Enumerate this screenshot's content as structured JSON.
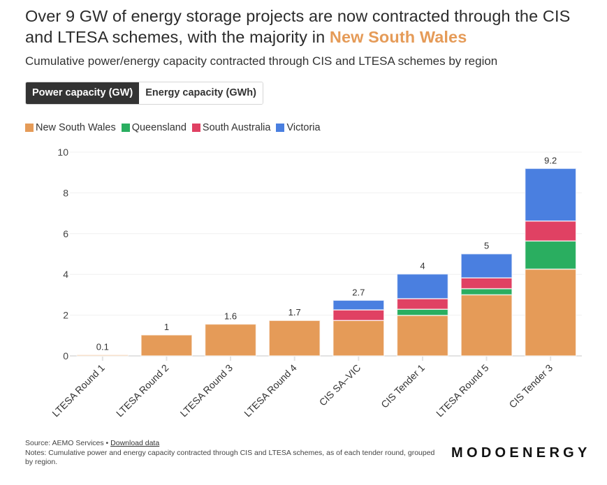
{
  "header": {
    "title_main": "Over 9 GW of energy storage projects are now contracted through the CIS and LTESA schemes, with the majority in ",
    "title_highlight": "New South Wales",
    "subtitle": "Cumulative power/energy capacity contracted through CIS and LTESA schemes by region"
  },
  "toggle": {
    "options": [
      {
        "label": "Power capacity (GW)",
        "active": true
      },
      {
        "label": "Energy capacity (GWh)",
        "active": false
      }
    ]
  },
  "colors": {
    "New South Wales": "#e59b58",
    "Queensland": "#2aae60",
    "South Australia": "#e04163",
    "Victoria": "#4a7fe0"
  },
  "chart_data": {
    "type": "bar",
    "stacked": true,
    "title": "Cumulative power/energy capacity contracted through CIS and LTESA schemes by region",
    "xlabel": "",
    "ylabel": "",
    "ylim": [
      0,
      10
    ],
    "yticks": [
      0,
      2,
      4,
      6,
      8,
      10
    ],
    "grid": true,
    "legend_position": "top-left",
    "categories": [
      "LTESA Round 1",
      "LTESA Round 2",
      "LTESA Round 3",
      "LTESA Round 4",
      "CIS SA–VIC",
      "CIS Tender 1",
      "LTESA Round 5",
      "CIS Tender 3"
    ],
    "series": [
      {
        "name": "New South Wales",
        "values": [
          0.05,
          1.03,
          1.56,
          1.74,
          1.74,
          1.99,
          3.0,
          4.26
        ]
      },
      {
        "name": "Queensland",
        "values": [
          0,
          0,
          0,
          0,
          0,
          0.3,
          0.3,
          1.38
        ]
      },
      {
        "name": "South Australia",
        "values": [
          0,
          0,
          0,
          0,
          0.52,
          0.52,
          0.53,
          0.98
        ]
      },
      {
        "name": "Victoria",
        "values": [
          0,
          0,
          0,
          0,
          0.47,
          1.21,
          1.18,
          2.58
        ]
      }
    ],
    "totals_labels": [
      "0.1",
      "1",
      "1.6",
      "1.7",
      "2.7",
      "4",
      "5",
      "9.2"
    ]
  },
  "footer": {
    "source_prefix": "Source: AEMO Services • ",
    "download_link": "Download data",
    "notes": "Notes: Cumulative power and energy capacity contracted through CIS and LTESA schemes, as of each tender round, grouped by region.",
    "brand": "MODOENERGY"
  }
}
